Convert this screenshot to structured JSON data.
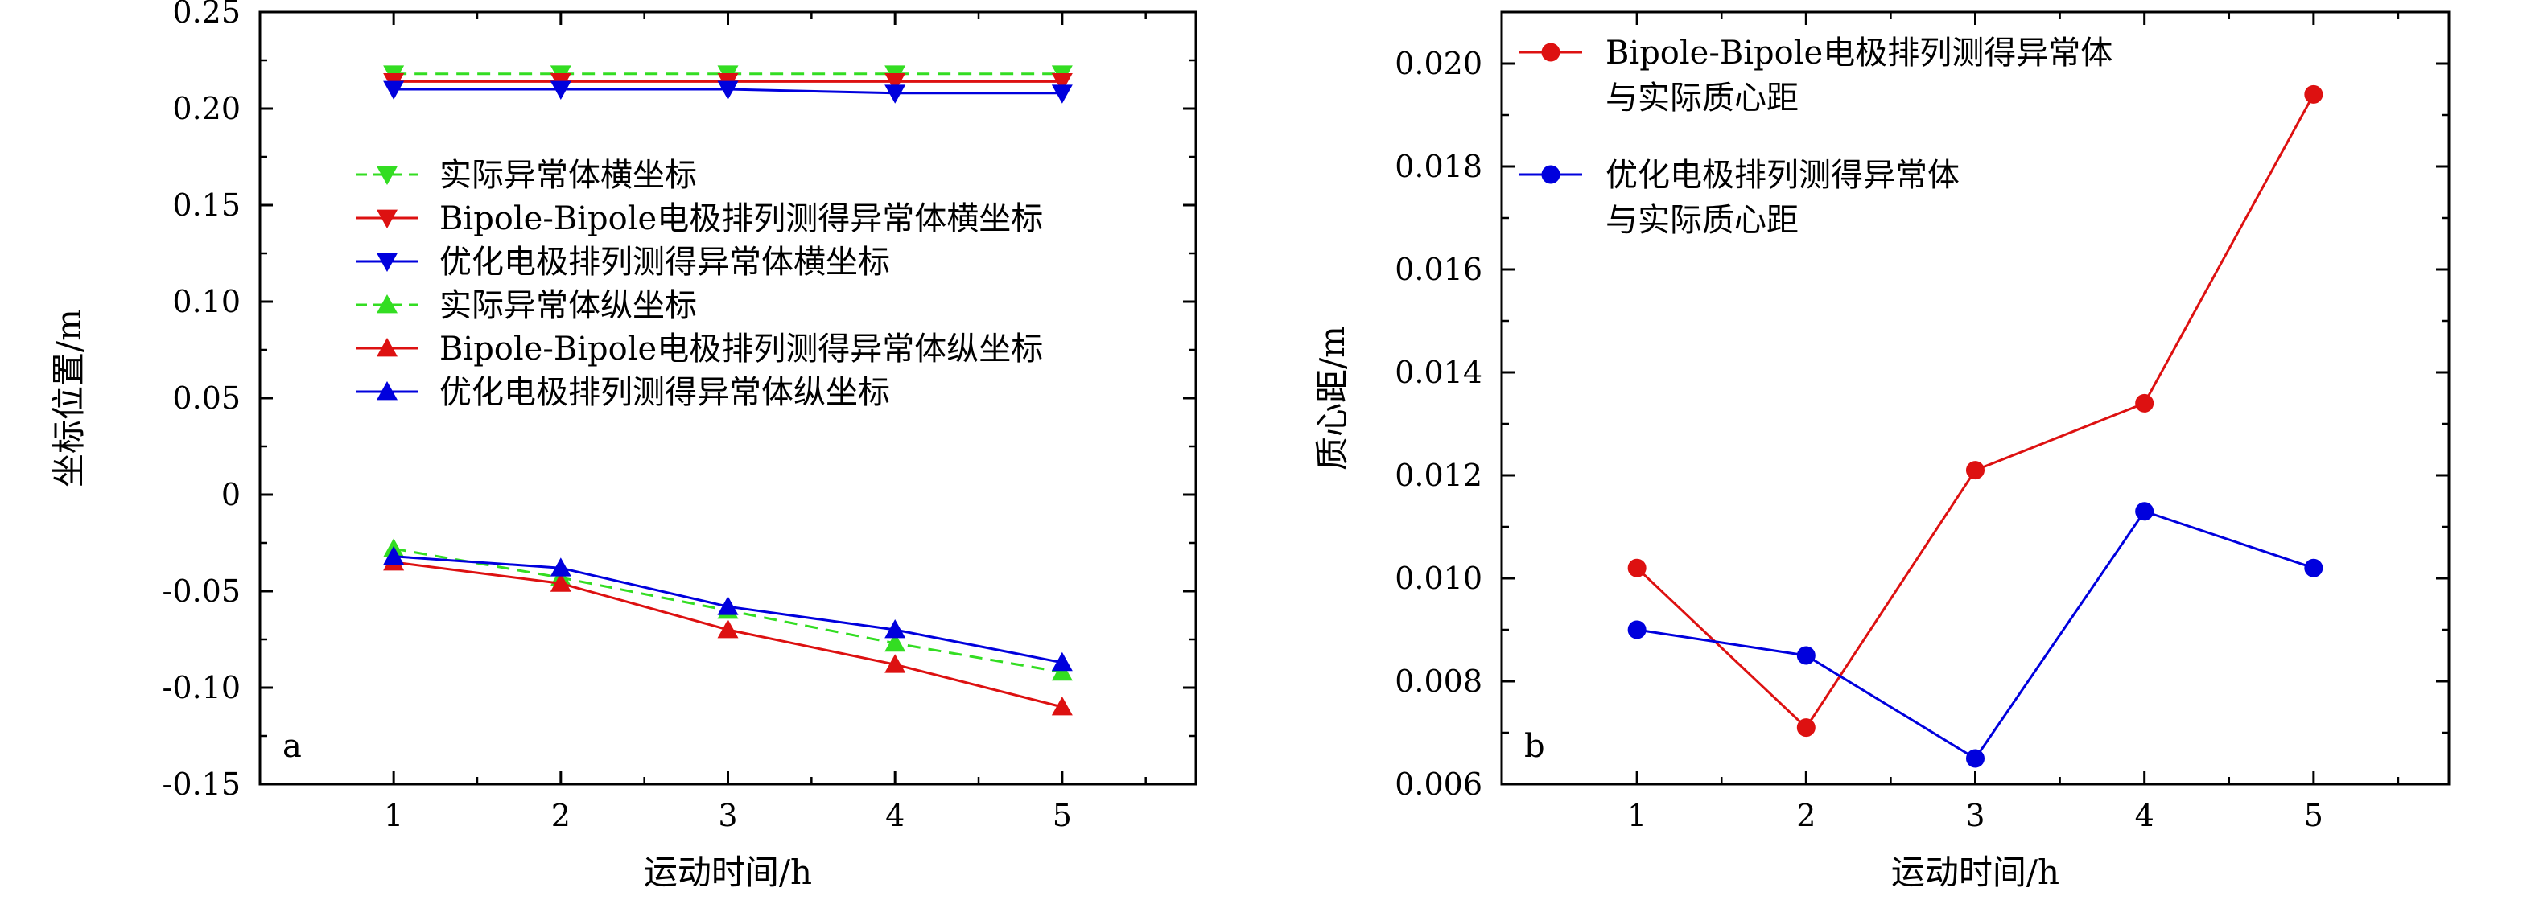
{
  "chart_data": [
    {
      "type": "line",
      "panel_label": "a",
      "xlabel": "运动时间/h",
      "ylabel": "坐标位置/m",
      "xlim": [
        0.2,
        5.8
      ],
      "ylim": [
        -0.15,
        0.25
      ],
      "xticks": [
        "1",
        "2",
        "3",
        "4",
        "5"
      ],
      "yticks": [
        "0.25",
        "0.20",
        "0.15",
        "0.10",
        "0.05",
        "0",
        "-0.05",
        "-0.10",
        "-0.15"
      ],
      "legend_position": "left",
      "x": [
        1,
        2,
        3,
        4,
        5
      ],
      "series": [
        {
          "name": "实际异常体横坐标",
          "color": "#33dd22",
          "dash": true,
          "marker": "triangle-down",
          "values": [
            0.218,
            0.218,
            0.218,
            0.218,
            0.218
          ]
        },
        {
          "name": "Bipole-Bipole电极排列测得异常体横坐标",
          "color": "#dd1111",
          "dash": false,
          "marker": "triangle-down",
          "values": [
            0.214,
            0.214,
            0.214,
            0.214,
            0.214
          ]
        },
        {
          "name": "优化电极排列测得异常体横坐标",
          "color": "#0000dd",
          "dash": false,
          "marker": "triangle-down",
          "values": [
            0.21,
            0.21,
            0.21,
            0.208,
            0.208
          ]
        },
        {
          "name": "实际异常体纵坐标",
          "color": "#33dd22",
          "dash": true,
          "marker": "triangle-up",
          "values": [
            -0.028,
            -0.043,
            -0.06,
            -0.077,
            -0.092
          ]
        },
        {
          "name": "Bipole-Bipole电极排列测得异常体纵坐标",
          "color": "#dd1111",
          "dash": false,
          "marker": "triangle-up",
          "values": [
            -0.035,
            -0.046,
            -0.07,
            -0.088,
            -0.11
          ]
        },
        {
          "name": "优化电极排列测得异常体纵坐标",
          "color": "#0000dd",
          "dash": false,
          "marker": "triangle-up",
          "values": [
            -0.032,
            -0.038,
            -0.058,
            -0.07,
            -0.087
          ]
        }
      ]
    },
    {
      "type": "line",
      "panel_label": "b",
      "xlabel": "运动时间/h",
      "ylabel": "质心距/m",
      "xlim": [
        0.2,
        5.8
      ],
      "ylim": [
        0.006,
        0.021
      ],
      "xticks": [
        "1",
        "2",
        "3",
        "4",
        "5"
      ],
      "yticks": [
        "0.006",
        "0.008",
        "0.010",
        "0.012",
        "0.014",
        "0.016",
        "0.018",
        "0.020"
      ],
      "legend_position": "top-left",
      "x": [
        1,
        2,
        3,
        4,
        5
      ],
      "series": [
        {
          "name": "Bipole-Bipole电极排列测得异常体",
          "name_line2": "与实际质心距",
          "color": "#dd1111",
          "marker": "circle",
          "values": [
            0.0102,
            0.0071,
            0.0121,
            0.0134,
            0.0194
          ]
        },
        {
          "name": "优化电极排列测得异常体",
          "name_line2": "与实际质心距",
          "color": "#0000dd",
          "marker": "circle",
          "values": [
            0.009,
            0.0085,
            0.0065,
            0.0113,
            0.0102
          ]
        }
      ]
    }
  ]
}
